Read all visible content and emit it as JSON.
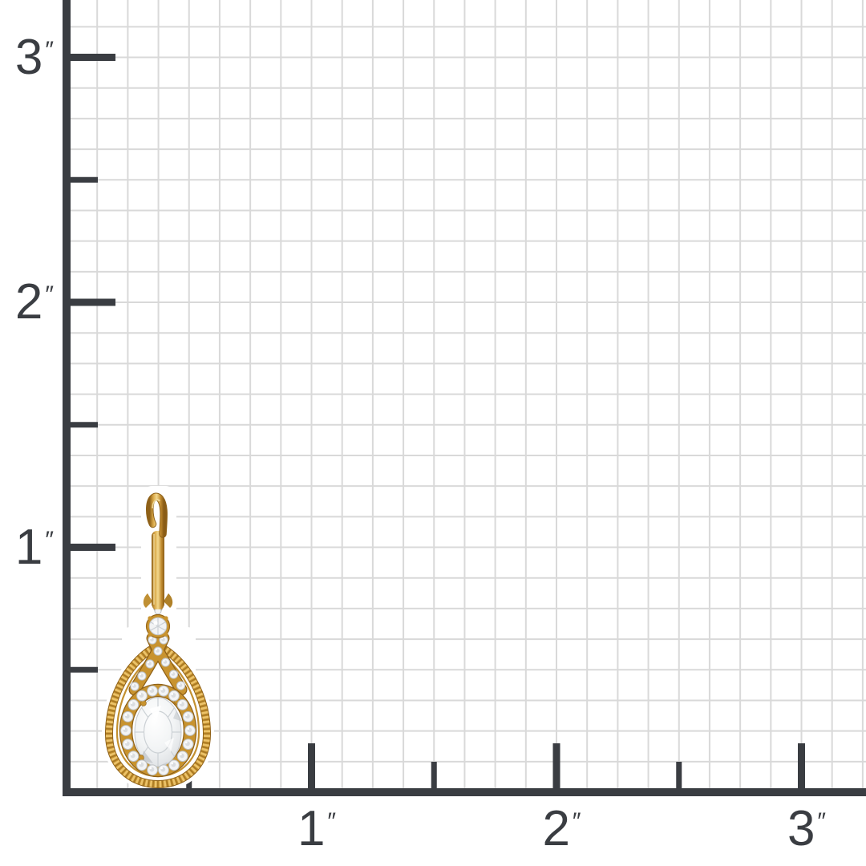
{
  "figure": {
    "description": "Inch ruler grid with product shown at actual size",
    "unit": "inch",
    "unit_symbol": "″",
    "minor_divisions_per_inch": 8,
    "y_axis": {
      "tick_labels": [
        {
          "number": "3",
          "prime": "″",
          "inches": 3
        },
        {
          "number": "2",
          "prime": "″",
          "inches": 2
        },
        {
          "number": "1",
          "prime": "″",
          "inches": 1
        }
      ]
    },
    "x_axis": {
      "tick_labels": [
        {
          "number": "1",
          "prime": "″",
          "inches": 1
        },
        {
          "number": "2",
          "prime": "″",
          "inches": 2
        },
        {
          "number": "3",
          "prime": "″",
          "inches": 3
        }
      ]
    },
    "colors": {
      "background": "#ffffff",
      "axis": "#3a3d42",
      "grid_line": "#d9d9d9",
      "gold": "#c8932f",
      "gold_light": "#f1d68c",
      "gold_dark": "#8f6118",
      "gemstone": "#f0f2f3"
    }
  }
}
